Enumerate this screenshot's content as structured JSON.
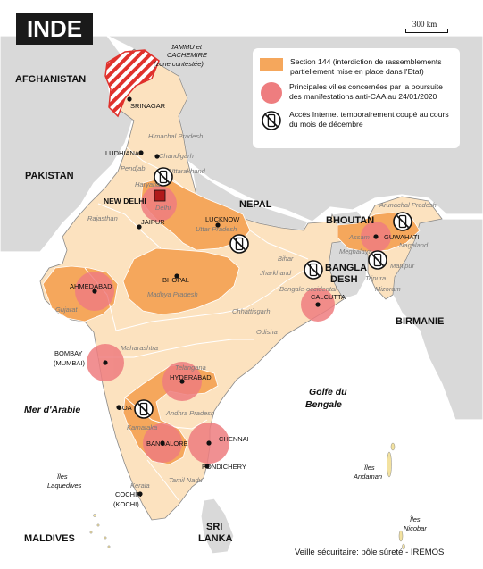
{
  "title": "INDE",
  "scale_label": "300 km",
  "legend": {
    "section144": "Section 144 (interdiction de rassemblements partiellement mise en place dans l'Etat)",
    "cities": "Principales villes concernées par la poursuite des manifestations anti-CAA au 24/01/2020",
    "internet": "Accès Internet temporairement coupé au cours du mois de décembre"
  },
  "credit": "Veille sécuritaire: pôle sûreté - IREMOS",
  "colors": {
    "section144": "#f5a75c",
    "india_base": "#fce2bf",
    "neighbours": "#d9d9d9",
    "sea": "#ffffff",
    "city_circle": "#ee7d7f",
    "disputed_stripe": "#e0312c"
  },
  "icons": {
    "internet_cut": "phone-crossed-icon",
    "city": "city-dot-icon",
    "capital": "capital-square-icon"
  },
  "labels": {
    "countries": {
      "afghanistan": "AFGHANISTAN",
      "pakistan": "PAKISTAN",
      "nepal": "NEPAL",
      "bhoutan": "BHOUTAN",
      "bangladesh_1": "BANGLA",
      "bangladesh_2": "DESH",
      "birmanie": "BIRMANIE",
      "sri_1": "SRI",
      "sri_2": "LANKA",
      "maldives": "MALDIVES"
    },
    "disputed_1": "JAMMU et",
    "disputed_2": "CACHEMIRE",
    "disputed_3": "(zone contestée)",
    "seas": {
      "arabie": "Mer d'Arabie",
      "bengale_1": "Golfe du",
      "bengale_2": "Bengale"
    },
    "islands": {
      "laquedives_1": "Îles",
      "laquedives_2": "Laquedives",
      "andaman_1": "Îles",
      "andaman_2": "Andaman",
      "nicobar_1": "Îles",
      "nicobar_2": "Nicobar"
    },
    "cities": {
      "srinagar": "SRINAGAR",
      "ludhiana": "LUDHIANA",
      "new_delhi": "NEW DELHI",
      "jaipur": "JAIPUR",
      "lucknow": "LUCKNOW",
      "guwahati": "GUWAHATI",
      "ahmedabad": "AHMEDABAD",
      "bhopal": "BHOPAL",
      "calcutta": "CALCUTTA",
      "bombay": "BOMBAY",
      "mumbai": "(MUMBAI)",
      "hyderabad": "HYDERABAD",
      "goa": "GOA",
      "bangalore": "BANGALORE",
      "chennai": "CHENNAI",
      "pondichery": "PONDICHERY",
      "cochin": "COCHIN",
      "kochi": "(KOCHI)"
    },
    "states": {
      "himachal": "Himachal Pradesh",
      "chandigarh": "Chandigarh",
      "uttarakhand": "Uttarakhand",
      "pendjab": "Pendjab",
      "haryana": "Haryana",
      "delhi": "Delhi",
      "rajasthan": "Rajasthan",
      "uttar": "Uttar Pradesh",
      "bihar": "Bihar",
      "jharkhand": "Jharkhand",
      "bengale": "Bengale-occidental",
      "gujarat": "Gujarat",
      "madhya": "Madhya Pradesh",
      "chhattisgarh": "Chhattisgarh",
      "odisha": "Odisha",
      "maharashtra": "Maharashtra",
      "telangana": "Telangana",
      "andhra": "Andhra Pradesh",
      "karnataka": "Karnataka",
      "tamil": "Tamil Nadu",
      "kerala": "Kerala",
      "arunachal": "Arunachal Pradesh",
      "assam": "Assam",
      "nagaland": "Nagaland",
      "meghalaya": "Meghalaya",
      "manipur": "Manipur",
      "tripura": "Tripura",
      "mizoram": "Mizoram"
    }
  }
}
